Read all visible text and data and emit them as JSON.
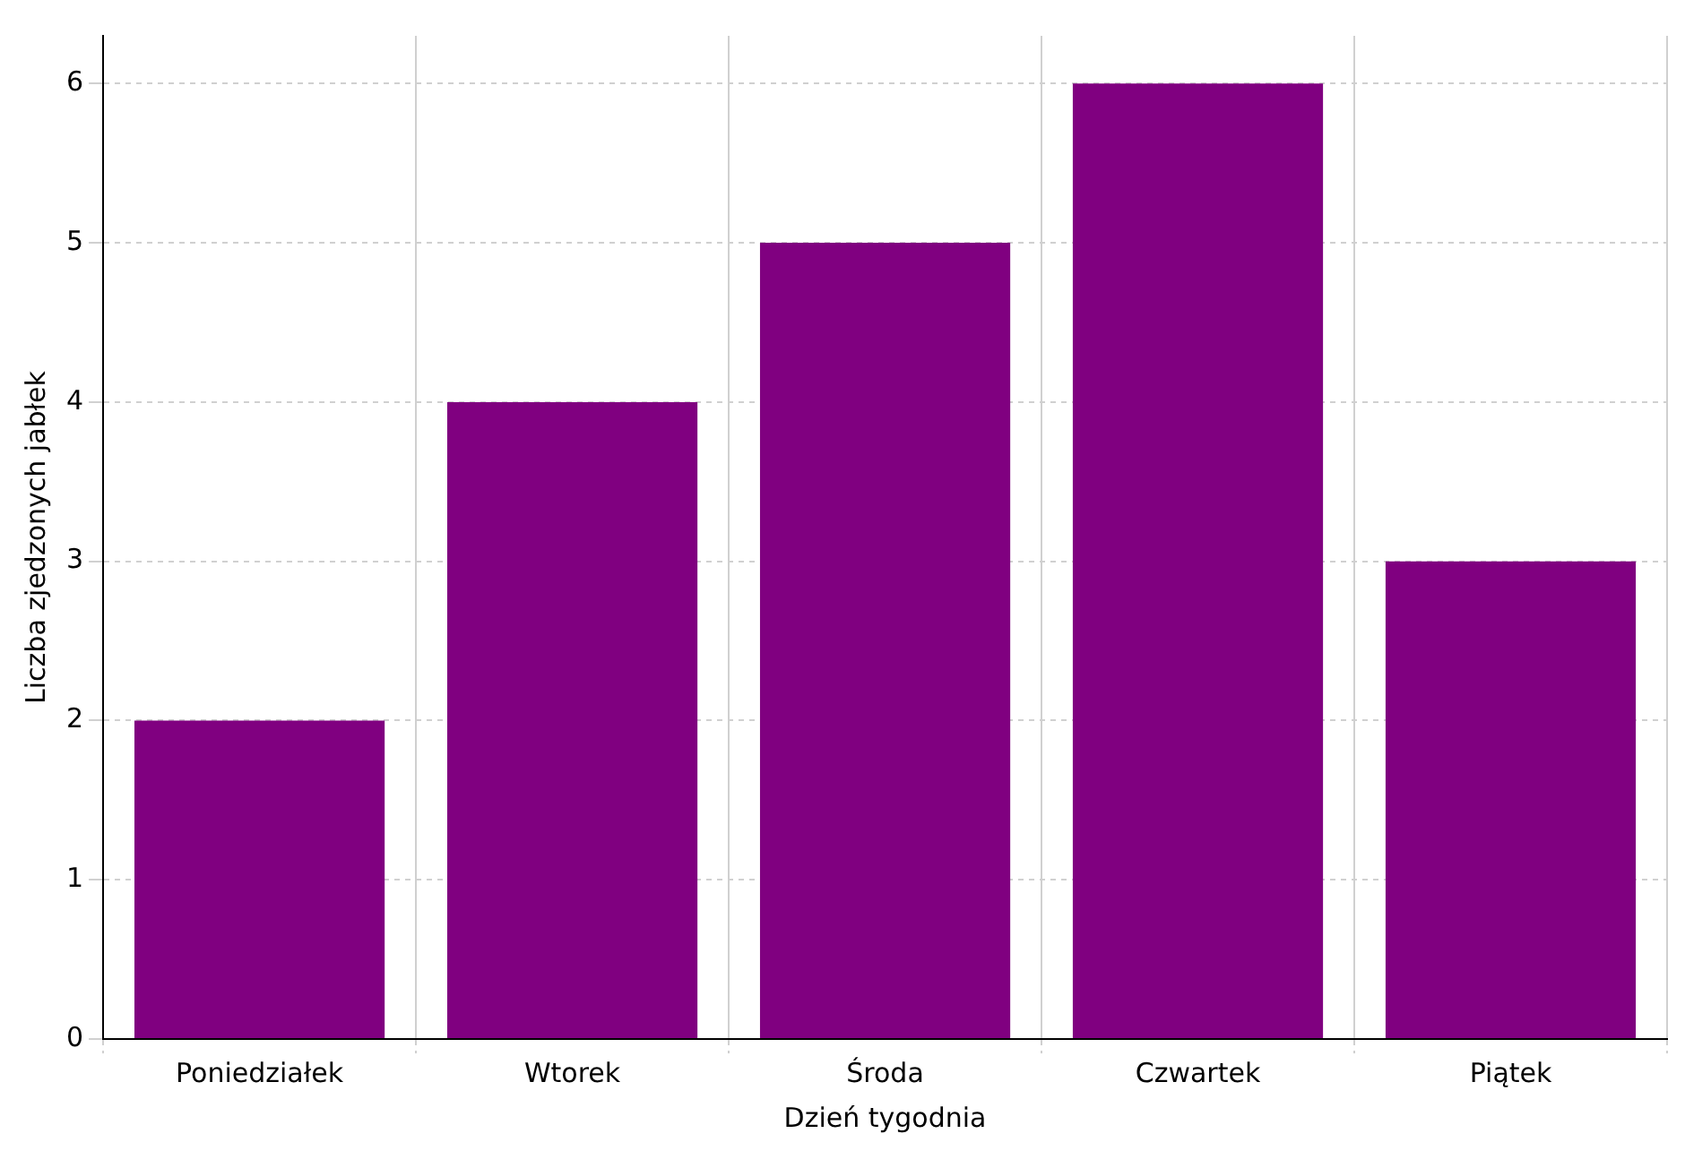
{
  "chart_data": {
    "type": "bar",
    "xlabel": "Dzień tygodnia",
    "ylabel": "Liczba zjedzonych jabłek",
    "categories": [
      "Poniedziałek",
      "Wtorek",
      "Środa",
      "Czwartek",
      "Piątek"
    ],
    "values": [
      2,
      4,
      5,
      6,
      3
    ],
    "color": "#800080",
    "ylim": [
      0,
      6.3
    ],
    "yticks": [
      0,
      1,
      2,
      3,
      4,
      5,
      6
    ],
    "grid": true
  }
}
